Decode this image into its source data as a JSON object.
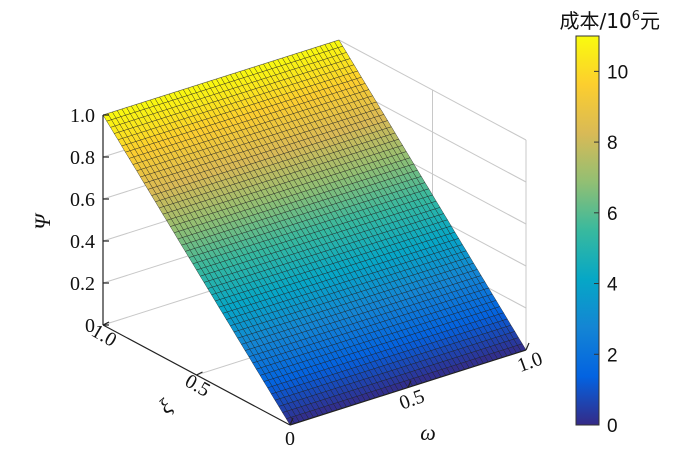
{
  "chart_data": {
    "type": "surface",
    "title": "",
    "surface_equation": "Psi = xi",
    "x_axis": {
      "label": "ω",
      "range": [
        0,
        1
      ],
      "ticks": [
        "0",
        "0.5",
        "1.0"
      ]
    },
    "y_axis": {
      "label": "ξ",
      "range": [
        0,
        1
      ],
      "ticks": [
        "0",
        "0.5",
        "1.0"
      ]
    },
    "z_axis": {
      "label": "Ψ",
      "range": [
        0,
        1
      ],
      "ticks": [
        "0",
        "0.2",
        "0.4",
        "0.6",
        "0.8",
        "1.0"
      ]
    },
    "colorbar": {
      "title_text": "成本/10",
      "title_sup": "6",
      "title_suffix": "元",
      "range": [
        0,
        11
      ],
      "ticks": [
        "0",
        "2",
        "4",
        "6",
        "8",
        "10"
      ],
      "colormap": "parula",
      "colors": [
        "#352a87",
        "#0363e1",
        "#1485d4",
        "#06a7c6",
        "#38b99e",
        "#92bf73",
        "#d9ba56",
        "#fcce2e",
        "#f9fb0e"
      ]
    },
    "grid": true,
    "grid_resolution": 50
  }
}
